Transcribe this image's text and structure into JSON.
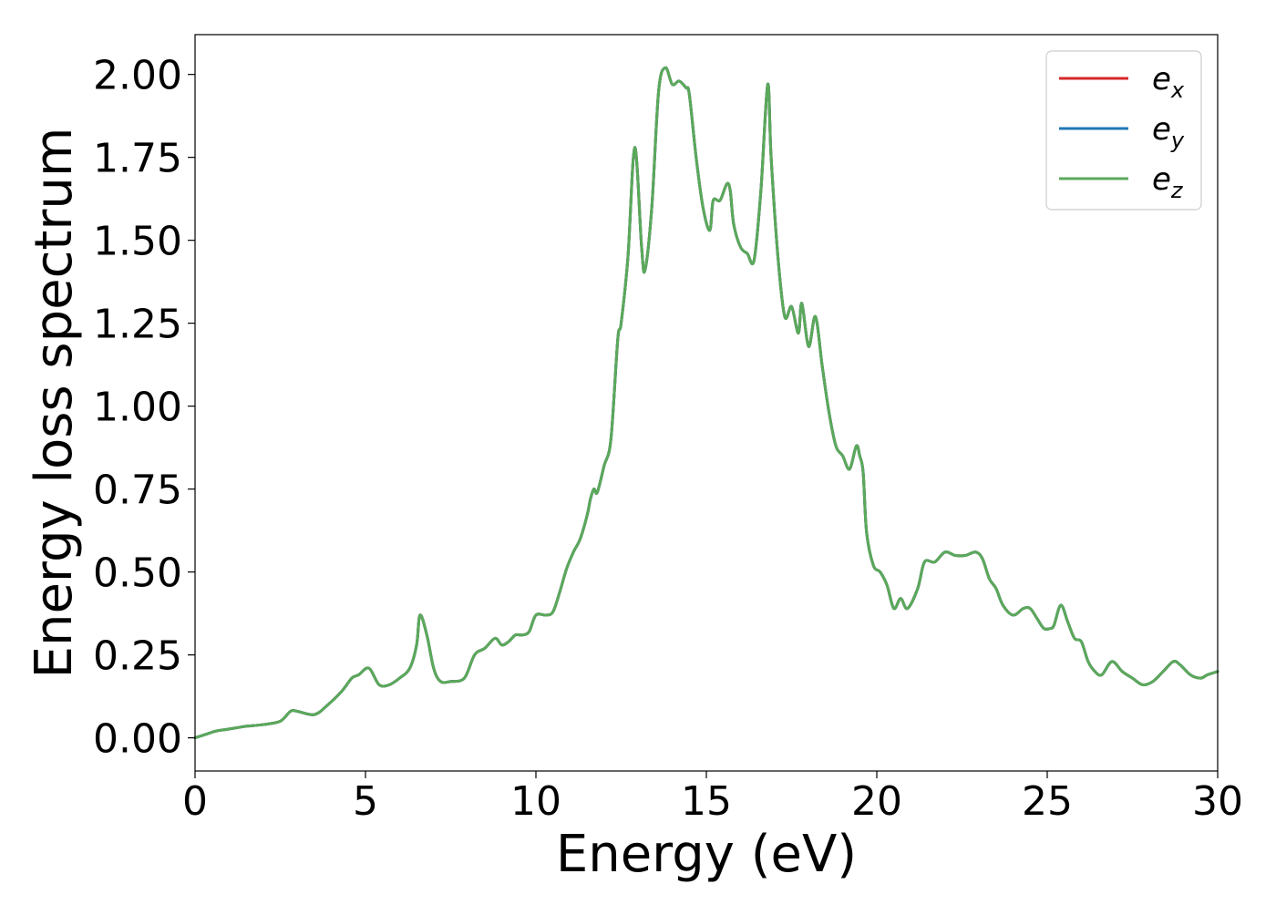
{
  "chart_data": {
    "type": "line",
    "title": "",
    "xlabel": "Energy (eV)",
    "ylabel": "Energy loss spectrum",
    "xlim": [
      0,
      30
    ],
    "ylim": [
      -0.1,
      2.12
    ],
    "x_ticks": [
      0,
      5,
      10,
      15,
      20,
      25,
      30
    ],
    "y_ticks": [
      0.0,
      0.25,
      0.5,
      0.75,
      1.0,
      1.25,
      1.5,
      1.75,
      2.0
    ],
    "x_tick_labels": [
      "0",
      "5",
      "10",
      "15",
      "20",
      "25",
      "30"
    ],
    "y_tick_labels": [
      "0.00",
      "0.25",
      "0.50",
      "0.75",
      "1.00",
      "1.25",
      "1.50",
      "1.75",
      "2.00"
    ],
    "grid": false,
    "legend_position": "top-right",
    "series": [
      {
        "name": "e_x",
        "legend_main": "e",
        "legend_sub": "x",
        "color": "#d62728",
        "x": [
          0,
          0.3,
          0.6,
          0.9,
          1.2,
          1.5,
          2,
          2.5,
          2.8,
          3,
          3.5,
          3.9,
          4.3,
          4.6,
          4.8,
          5.1,
          5.4,
          5.7,
          6.0,
          6.3,
          6.5,
          6.6,
          6.8,
          7.0,
          7.2,
          7.5,
          7.9,
          8.2,
          8.5,
          8.8,
          9.0,
          9.2,
          9.4,
          9.6,
          9.8,
          10.0,
          10.3,
          10.5,
          10.7,
          10.9,
          11.1,
          11.3,
          11.5,
          11.6,
          11.7,
          11.8,
          12.0,
          12.2,
          12.4,
          12.5,
          12.7,
          12.9,
          13.1,
          13.2,
          13.4,
          13.6,
          13.8,
          14.0,
          14.2,
          14.4,
          14.5,
          14.7,
          14.9,
          15.1,
          15.2,
          15.4,
          15.6,
          15.7,
          15.8,
          16.0,
          16.2,
          16.4,
          16.6,
          16.8,
          16.9,
          17.1,
          17.3,
          17.5,
          17.7,
          17.8,
          18.0,
          18.2,
          18.4,
          18.6,
          18.8,
          19.0,
          19.2,
          19.4,
          19.5,
          19.6,
          19.7,
          19.9,
          20.1,
          20.3,
          20.5,
          20.7,
          20.9,
          21.2,
          21.4,
          21.7,
          22.0,
          22.3,
          22.6,
          22.9,
          23.1,
          23.3,
          23.5,
          23.7,
          24.0,
          24.3,
          24.5,
          24.7,
          24.9,
          25.1,
          25.2,
          25.4,
          25.6,
          25.8,
          26.0,
          26.2,
          26.4,
          26.6,
          26.9,
          27.2,
          27.5,
          27.8,
          28.1,
          28.4,
          28.7,
          28.9,
          29.2,
          29.5,
          29.7,
          30.0
        ],
        "values": [
          0.0,
          0.01,
          0.02,
          0.025,
          0.03,
          0.035,
          0.04,
          0.05,
          0.08,
          0.08,
          0.07,
          0.1,
          0.14,
          0.18,
          0.19,
          0.21,
          0.16,
          0.16,
          0.18,
          0.21,
          0.28,
          0.37,
          0.31,
          0.21,
          0.17,
          0.17,
          0.18,
          0.25,
          0.27,
          0.3,
          0.28,
          0.29,
          0.31,
          0.31,
          0.32,
          0.37,
          0.37,
          0.38,
          0.44,
          0.51,
          0.56,
          0.6,
          0.67,
          0.72,
          0.75,
          0.74,
          0.82,
          0.9,
          1.2,
          1.25,
          1.45,
          1.78,
          1.48,
          1.41,
          1.6,
          1.95,
          2.02,
          1.97,
          1.98,
          1.96,
          1.94,
          1.75,
          1.6,
          1.53,
          1.62,
          1.62,
          1.67,
          1.65,
          1.55,
          1.48,
          1.46,
          1.44,
          1.65,
          1.97,
          1.75,
          1.45,
          1.27,
          1.3,
          1.22,
          1.31,
          1.18,
          1.27,
          1.12,
          0.98,
          0.88,
          0.85,
          0.81,
          0.88,
          0.85,
          0.8,
          0.62,
          0.52,
          0.5,
          0.46,
          0.39,
          0.42,
          0.39,
          0.45,
          0.53,
          0.53,
          0.56,
          0.55,
          0.55,
          0.56,
          0.54,
          0.48,
          0.45,
          0.4,
          0.37,
          0.39,
          0.39,
          0.36,
          0.33,
          0.33,
          0.34,
          0.4,
          0.35,
          0.3,
          0.29,
          0.23,
          0.2,
          0.19,
          0.23,
          0.2,
          0.18,
          0.16,
          0.17,
          0.2,
          0.23,
          0.22,
          0.19,
          0.18,
          0.19,
          0.2
        ]
      },
      {
        "name": "e_y",
        "legend_main": "e",
        "legend_sub": "y",
        "color": "#1f77b4",
        "x": [
          0,
          0.3,
          0.6,
          0.9,
          1.2,
          1.5,
          2,
          2.5,
          2.8,
          3,
          3.5,
          3.9,
          4.3,
          4.6,
          4.8,
          5.1,
          5.4,
          5.7,
          6.0,
          6.3,
          6.5,
          6.6,
          6.8,
          7.0,
          7.2,
          7.5,
          7.9,
          8.2,
          8.5,
          8.8,
          9.0,
          9.2,
          9.4,
          9.6,
          9.8,
          10.0,
          10.3,
          10.5,
          10.7,
          10.9,
          11.1,
          11.3,
          11.5,
          11.6,
          11.7,
          11.8,
          12.0,
          12.2,
          12.4,
          12.5,
          12.7,
          12.9,
          13.1,
          13.2,
          13.4,
          13.6,
          13.8,
          14.0,
          14.2,
          14.4,
          14.5,
          14.7,
          14.9,
          15.1,
          15.2,
          15.4,
          15.6,
          15.7,
          15.8,
          16.0,
          16.2,
          16.4,
          16.6,
          16.8,
          16.9,
          17.1,
          17.3,
          17.5,
          17.7,
          17.8,
          18.0,
          18.2,
          18.4,
          18.6,
          18.8,
          19.0,
          19.2,
          19.4,
          19.5,
          19.6,
          19.7,
          19.9,
          20.1,
          20.3,
          20.5,
          20.7,
          20.9,
          21.2,
          21.4,
          21.7,
          22.0,
          22.3,
          22.6,
          22.9,
          23.1,
          23.3,
          23.5,
          23.7,
          24.0,
          24.3,
          24.5,
          24.7,
          24.9,
          25.1,
          25.2,
          25.4,
          25.6,
          25.8,
          26.0,
          26.2,
          26.4,
          26.6,
          26.9,
          27.2,
          27.5,
          27.8,
          28.1,
          28.4,
          28.7,
          28.9,
          29.2,
          29.5,
          29.7,
          30.0
        ],
        "values": [
          0.0,
          0.01,
          0.02,
          0.025,
          0.03,
          0.035,
          0.04,
          0.05,
          0.08,
          0.08,
          0.07,
          0.1,
          0.14,
          0.18,
          0.19,
          0.21,
          0.16,
          0.16,
          0.18,
          0.21,
          0.28,
          0.37,
          0.31,
          0.21,
          0.17,
          0.17,
          0.18,
          0.25,
          0.27,
          0.3,
          0.28,
          0.29,
          0.31,
          0.31,
          0.32,
          0.37,
          0.37,
          0.38,
          0.44,
          0.51,
          0.56,
          0.6,
          0.67,
          0.72,
          0.75,
          0.74,
          0.82,
          0.9,
          1.2,
          1.25,
          1.45,
          1.78,
          1.48,
          1.41,
          1.6,
          1.95,
          2.02,
          1.97,
          1.98,
          1.96,
          1.94,
          1.75,
          1.6,
          1.53,
          1.62,
          1.62,
          1.67,
          1.65,
          1.55,
          1.48,
          1.46,
          1.44,
          1.65,
          1.97,
          1.75,
          1.45,
          1.27,
          1.3,
          1.22,
          1.31,
          1.18,
          1.27,
          1.12,
          0.98,
          0.88,
          0.85,
          0.81,
          0.88,
          0.85,
          0.8,
          0.62,
          0.52,
          0.5,
          0.46,
          0.39,
          0.42,
          0.39,
          0.45,
          0.53,
          0.53,
          0.56,
          0.55,
          0.55,
          0.56,
          0.54,
          0.48,
          0.45,
          0.4,
          0.37,
          0.39,
          0.39,
          0.36,
          0.33,
          0.33,
          0.34,
          0.4,
          0.35,
          0.3,
          0.29,
          0.23,
          0.2,
          0.19,
          0.23,
          0.2,
          0.18,
          0.16,
          0.17,
          0.2,
          0.23,
          0.22,
          0.19,
          0.18,
          0.19,
          0.2
        ]
      },
      {
        "name": "e_z",
        "legend_main": "e",
        "legend_sub": "z",
        "color": "#5aa95a",
        "x": [
          0,
          0.3,
          0.6,
          0.9,
          1.2,
          1.5,
          2,
          2.5,
          2.8,
          3,
          3.5,
          3.9,
          4.3,
          4.6,
          4.8,
          5.1,
          5.4,
          5.7,
          6.0,
          6.3,
          6.5,
          6.6,
          6.8,
          7.0,
          7.2,
          7.5,
          7.9,
          8.2,
          8.5,
          8.8,
          9.0,
          9.2,
          9.4,
          9.6,
          9.8,
          10.0,
          10.3,
          10.5,
          10.7,
          10.9,
          11.1,
          11.3,
          11.5,
          11.6,
          11.7,
          11.8,
          12.0,
          12.2,
          12.4,
          12.5,
          12.7,
          12.9,
          13.1,
          13.2,
          13.4,
          13.6,
          13.8,
          14.0,
          14.2,
          14.4,
          14.5,
          14.7,
          14.9,
          15.1,
          15.2,
          15.4,
          15.6,
          15.7,
          15.8,
          16.0,
          16.2,
          16.4,
          16.6,
          16.8,
          16.9,
          17.1,
          17.3,
          17.5,
          17.7,
          17.8,
          18.0,
          18.2,
          18.4,
          18.6,
          18.8,
          19.0,
          19.2,
          19.4,
          19.5,
          19.6,
          19.7,
          19.9,
          20.1,
          20.3,
          20.5,
          20.7,
          20.9,
          21.2,
          21.4,
          21.7,
          22.0,
          22.3,
          22.6,
          22.9,
          23.1,
          23.3,
          23.5,
          23.7,
          24.0,
          24.3,
          24.5,
          24.7,
          24.9,
          25.1,
          25.2,
          25.4,
          25.6,
          25.8,
          26.0,
          26.2,
          26.4,
          26.6,
          26.9,
          27.2,
          27.5,
          27.8,
          28.1,
          28.4,
          28.7,
          28.9,
          29.2,
          29.5,
          29.7,
          30.0
        ],
        "values": [
          0.0,
          0.01,
          0.02,
          0.025,
          0.03,
          0.035,
          0.04,
          0.05,
          0.08,
          0.08,
          0.07,
          0.1,
          0.14,
          0.18,
          0.19,
          0.21,
          0.16,
          0.16,
          0.18,
          0.21,
          0.28,
          0.37,
          0.31,
          0.21,
          0.17,
          0.17,
          0.18,
          0.25,
          0.27,
          0.3,
          0.28,
          0.29,
          0.31,
          0.31,
          0.32,
          0.37,
          0.37,
          0.38,
          0.44,
          0.51,
          0.56,
          0.6,
          0.67,
          0.72,
          0.75,
          0.74,
          0.82,
          0.9,
          1.2,
          1.25,
          1.45,
          1.78,
          1.48,
          1.41,
          1.6,
          1.95,
          2.02,
          1.97,
          1.98,
          1.96,
          1.94,
          1.75,
          1.6,
          1.53,
          1.62,
          1.62,
          1.67,
          1.65,
          1.55,
          1.48,
          1.46,
          1.44,
          1.65,
          1.97,
          1.75,
          1.45,
          1.27,
          1.3,
          1.22,
          1.31,
          1.18,
          1.27,
          1.12,
          0.98,
          0.88,
          0.85,
          0.81,
          0.88,
          0.85,
          0.8,
          0.62,
          0.52,
          0.5,
          0.46,
          0.39,
          0.42,
          0.39,
          0.45,
          0.53,
          0.53,
          0.56,
          0.55,
          0.55,
          0.56,
          0.54,
          0.48,
          0.45,
          0.4,
          0.37,
          0.39,
          0.39,
          0.36,
          0.33,
          0.33,
          0.34,
          0.4,
          0.35,
          0.3,
          0.29,
          0.23,
          0.2,
          0.19,
          0.23,
          0.2,
          0.18,
          0.16,
          0.17,
          0.2,
          0.23,
          0.22,
          0.19,
          0.18,
          0.19,
          0.2
        ]
      }
    ]
  }
}
